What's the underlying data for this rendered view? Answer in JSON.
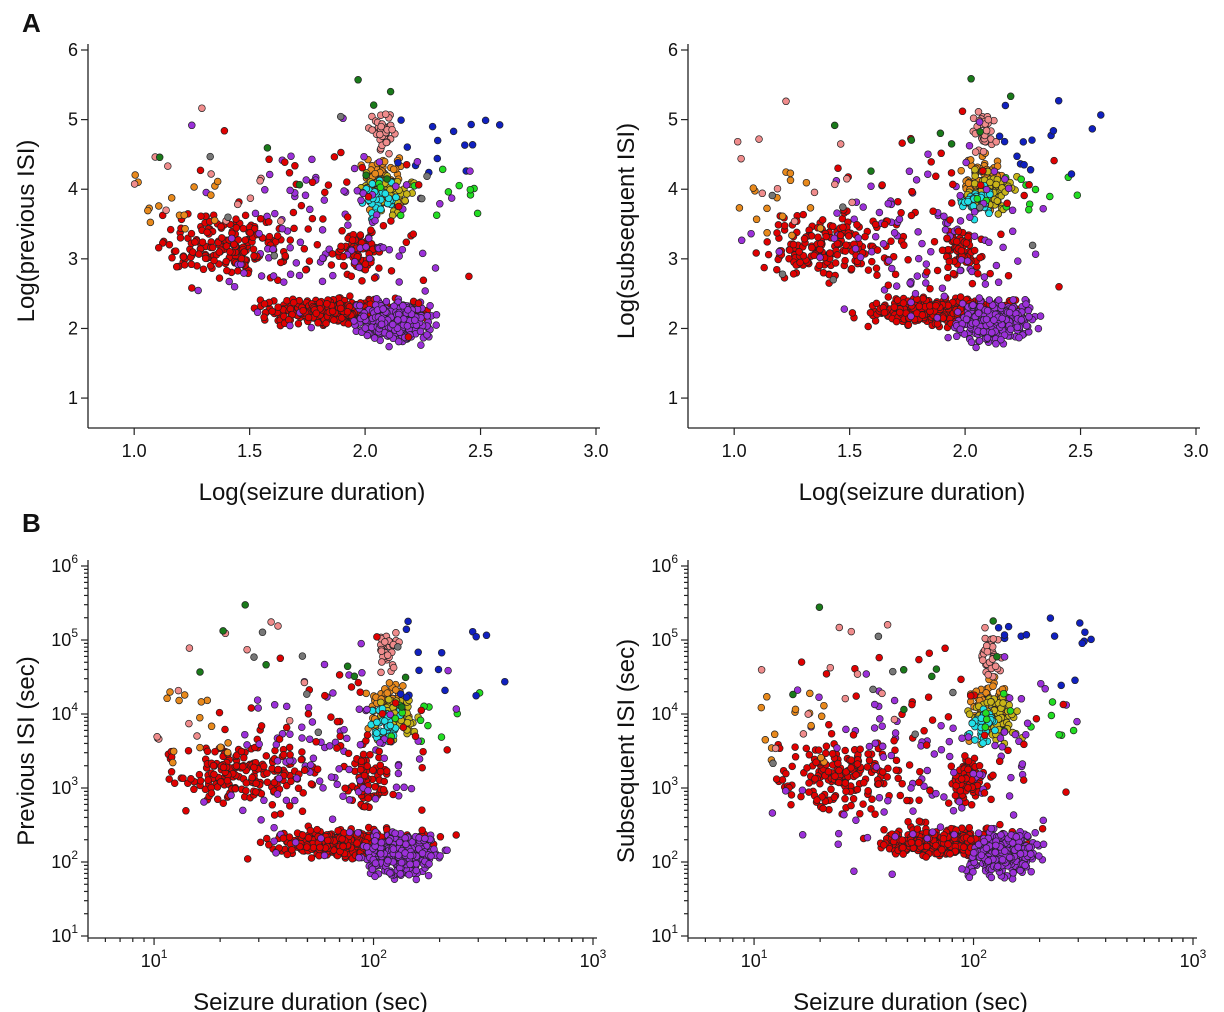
{
  "panel_labels": [
    "A",
    "B"
  ],
  "legend": [],
  "chart_data": [
    {
      "id": "A-left",
      "type": "scatter",
      "xlabel": "Log(seizure duration)",
      "ylabel": "Log(previous ISI)",
      "xlim": [
        0.8,
        3.0
      ],
      "ylim": [
        0.8,
        6.0
      ],
      "xticks": [
        "1.0",
        "1.5",
        "2.0",
        "2.5",
        "3.0"
      ],
      "yticks": [
        "1",
        "2",
        "3",
        "4",
        "5",
        "6"
      ],
      "xscale": "linear",
      "yscale": "linear",
      "grid": false,
      "series_colors": {
        "red": "#e00000",
        "purple": "#9b30d9",
        "orange": "#e8891c",
        "olive": "#c8b418",
        "cyan": "#22e0e8",
        "pink": "#f08c8c",
        "blue": "#1020c0",
        "green": "#22dd22",
        "darkgreen": "#1a7a1a",
        "gray": "#777777"
      },
      "clusters": [
        {
          "color": "red",
          "n": 420,
          "x": [
            1.45,
            2.35
          ],
          "y": [
            2.0,
            2.5
          ]
        },
        {
          "color": "purple",
          "n": 300,
          "x": [
            1.9,
            2.35
          ],
          "y": [
            1.7,
            2.5
          ]
        },
        {
          "color": "red",
          "n": 180,
          "x": [
            1.0,
            1.8
          ],
          "y": [
            2.6,
            3.8
          ]
        },
        {
          "color": "red",
          "n": 70,
          "x": [
            1.85,
            2.1
          ],
          "y": [
            2.6,
            3.6
          ]
        },
        {
          "color": "orange",
          "n": 90,
          "x": [
            1.95,
            2.2
          ],
          "y": [
            3.6,
            4.6
          ]
        },
        {
          "color": "olive",
          "n": 80,
          "x": [
            1.95,
            2.25
          ],
          "y": [
            3.5,
            4.4
          ]
        },
        {
          "color": "cyan",
          "n": 40,
          "x": [
            1.95,
            2.15
          ],
          "y": [
            3.5,
            4.2
          ]
        },
        {
          "color": "pink",
          "n": 35,
          "x": [
            2.0,
            2.15
          ],
          "y": [
            4.4,
            5.3
          ]
        },
        {
          "color": "green",
          "n": 12,
          "x": [
            2.05,
            2.5
          ],
          "y": [
            3.6,
            4.3
          ]
        },
        {
          "color": "blue",
          "n": 15,
          "x": [
            2.1,
            2.6
          ],
          "y": [
            4.2,
            5.3
          ]
        },
        {
          "color": "purple",
          "n": 100,
          "x": [
            1.0,
            2.6
          ],
          "y": [
            1.6,
            5.2
          ]
        },
        {
          "color": "red",
          "n": 60,
          "x": [
            1.0,
            2.7
          ],
          "y": [
            1.6,
            5.5
          ]
        },
        {
          "color": "orange",
          "n": 15,
          "x": [
            1.0,
            1.4
          ],
          "y": [
            3.3,
            4.3
          ]
        },
        {
          "color": "pink",
          "n": 12,
          "x": [
            1.0,
            1.7
          ],
          "y": [
            3.5,
            5.3
          ]
        },
        {
          "color": "darkgreen",
          "n": 8,
          "x": [
            1.1,
            2.3
          ],
          "y": [
            4.0,
            5.7
          ]
        },
        {
          "color": "gray",
          "n": 6,
          "x": [
            1.05,
            2.3
          ],
          "y": [
            2.6,
            5.2
          ]
        }
      ]
    },
    {
      "id": "A-right",
      "type": "scatter",
      "xlabel": "Log(seizure duration)",
      "ylabel": "Log(subsequent ISI)",
      "xlim": [
        0.8,
        3.0
      ],
      "ylim": [
        0.8,
        6.0
      ],
      "xticks": [
        "1.0",
        "1.5",
        "2.0",
        "2.5",
        "3.0"
      ],
      "yticks": [
        "1",
        "2",
        "3",
        "4",
        "5",
        "6"
      ],
      "xscale": "linear",
      "yscale": "linear",
      "grid": false,
      "clusters": [
        {
          "color": "red",
          "n": 420,
          "x": [
            1.45,
            2.35
          ],
          "y": [
            2.0,
            2.5
          ]
        },
        {
          "color": "purple",
          "n": 300,
          "x": [
            1.9,
            2.35
          ],
          "y": [
            1.7,
            2.5
          ]
        },
        {
          "color": "red",
          "n": 170,
          "x": [
            1.0,
            1.8
          ],
          "y": [
            2.5,
            3.8
          ]
        },
        {
          "color": "red",
          "n": 70,
          "x": [
            1.85,
            2.1
          ],
          "y": [
            2.6,
            3.6
          ]
        },
        {
          "color": "orange",
          "n": 90,
          "x": [
            1.95,
            2.2
          ],
          "y": [
            3.6,
            4.6
          ]
        },
        {
          "color": "olive",
          "n": 80,
          "x": [
            1.95,
            2.25
          ],
          "y": [
            3.5,
            4.4
          ]
        },
        {
          "color": "cyan",
          "n": 40,
          "x": [
            1.95,
            2.15
          ],
          "y": [
            3.5,
            4.2
          ]
        },
        {
          "color": "pink",
          "n": 35,
          "x": [
            2.0,
            2.15
          ],
          "y": [
            4.4,
            5.3
          ]
        },
        {
          "color": "green",
          "n": 12,
          "x": [
            2.05,
            2.5
          ],
          "y": [
            3.6,
            4.3
          ]
        },
        {
          "color": "blue",
          "n": 15,
          "x": [
            2.1,
            2.6
          ],
          "y": [
            4.2,
            5.3
          ]
        },
        {
          "color": "purple",
          "n": 100,
          "x": [
            1.0,
            2.6
          ],
          "y": [
            1.5,
            5.2
          ]
        },
        {
          "color": "red",
          "n": 60,
          "x": [
            1.0,
            2.7
          ],
          "y": [
            1.6,
            5.5
          ]
        },
        {
          "color": "orange",
          "n": 15,
          "x": [
            1.0,
            1.4
          ],
          "y": [
            3.3,
            4.3
          ]
        },
        {
          "color": "pink",
          "n": 12,
          "x": [
            1.0,
            1.7
          ],
          "y": [
            3.5,
            5.3
          ]
        },
        {
          "color": "darkgreen",
          "n": 8,
          "x": [
            1.1,
            2.3
          ],
          "y": [
            4.0,
            5.7
          ]
        },
        {
          "color": "gray",
          "n": 6,
          "x": [
            1.05,
            2.3
          ],
          "y": [
            2.6,
            5.2
          ]
        }
      ]
    },
    {
      "id": "B-left",
      "type": "scatter",
      "xlabel": "Seizure duration (sec)",
      "ylabel": "Previous ISI (sec)",
      "xlim": [
        5,
        1000
      ],
      "ylim": [
        10,
        1000000
      ],
      "xticks": [
        "10^1",
        "10^2",
        "10^3"
      ],
      "yticks": [
        "10^1",
        "10^2",
        "10^3",
        "10^4",
        "10^5",
        "10^6"
      ],
      "xscale": "log",
      "yscale": "log",
      "grid": false,
      "clusters": [
        {
          "color": "red",
          "n": 420,
          "x": [
            28,
            220
          ],
          "y": [
            100,
            320
          ]
        },
        {
          "color": "purple",
          "n": 300,
          "x": [
            80,
            220
          ],
          "y": [
            50,
            320
          ]
        },
        {
          "color": "red",
          "n": 180,
          "x": [
            10,
            63
          ],
          "y": [
            400,
            6300
          ]
        },
        {
          "color": "red",
          "n": 70,
          "x": [
            70,
            126
          ],
          "y": [
            400,
            4000
          ]
        },
        {
          "color": "orange",
          "n": 90,
          "x": [
            89,
            158
          ],
          "y": [
            4000,
            40000
          ]
        },
        {
          "color": "olive",
          "n": 80,
          "x": [
            89,
            178
          ],
          "y": [
            3200,
            25000
          ]
        },
        {
          "color": "cyan",
          "n": 40,
          "x": [
            89,
            141
          ],
          "y": [
            3200,
            16000
          ]
        },
        {
          "color": "pink",
          "n": 35,
          "x": [
            100,
            141
          ],
          "y": [
            25000,
            200000
          ]
        },
        {
          "color": "green",
          "n": 12,
          "x": [
            112,
            316
          ],
          "y": [
            4000,
            20000
          ]
        },
        {
          "color": "blue",
          "n": 15,
          "x": [
            126,
            400
          ],
          "y": [
            16000,
            200000
          ]
        },
        {
          "color": "purple",
          "n": 100,
          "x": [
            10,
            400
          ],
          "y": [
            40,
            158000
          ]
        },
        {
          "color": "red",
          "n": 60,
          "x": [
            10,
            500
          ],
          "y": [
            40,
            316000
          ]
        },
        {
          "color": "orange",
          "n": 15,
          "x": [
            10,
            25
          ],
          "y": [
            2000,
            20000
          ]
        },
        {
          "color": "pink",
          "n": 12,
          "x": [
            10,
            50
          ],
          "y": [
            3200,
            200000
          ]
        },
        {
          "color": "darkgreen",
          "n": 8,
          "x": [
            12,
            200
          ],
          "y": [
            10000,
            500000
          ]
        },
        {
          "color": "gray",
          "n": 6,
          "x": [
            11,
            200
          ],
          "y": [
            400,
            158000
          ]
        }
      ]
    },
    {
      "id": "B-right",
      "type": "scatter",
      "xlabel": "Seizure duration (sec)",
      "ylabel": "Subsequent ISI (sec)",
      "xlim": [
        5,
        1000
      ],
      "ylim": [
        10,
        1000000
      ],
      "xticks": [
        "10^1",
        "10^2",
        "10^3"
      ],
      "yticks": [
        "10^1",
        "10^2",
        "10^3",
        "10^4",
        "10^5",
        "10^6"
      ],
      "xscale": "log",
      "yscale": "log",
      "grid": false,
      "clusters": [
        {
          "color": "red",
          "n": 420,
          "x": [
            28,
            220
          ],
          "y": [
            100,
            320
          ]
        },
        {
          "color": "purple",
          "n": 300,
          "x": [
            80,
            220
          ],
          "y": [
            50,
            320
          ]
        },
        {
          "color": "red",
          "n": 170,
          "x": [
            10,
            63
          ],
          "y": [
            320,
            6300
          ]
        },
        {
          "color": "red",
          "n": 70,
          "x": [
            70,
            126
          ],
          "y": [
            400,
            4000
          ]
        },
        {
          "color": "orange",
          "n": 90,
          "x": [
            89,
            158
          ],
          "y": [
            4000,
            40000
          ]
        },
        {
          "color": "olive",
          "n": 80,
          "x": [
            89,
            178
          ],
          "y": [
            3200,
            25000
          ]
        },
        {
          "color": "cyan",
          "n": 40,
          "x": [
            89,
            141
          ],
          "y": [
            3200,
            16000
          ]
        },
        {
          "color": "pink",
          "n": 35,
          "x": [
            100,
            141
          ],
          "y": [
            25000,
            200000
          ]
        },
        {
          "color": "green",
          "n": 12,
          "x": [
            112,
            316
          ],
          "y": [
            4000,
            20000
          ]
        },
        {
          "color": "blue",
          "n": 15,
          "x": [
            126,
            400
          ],
          "y": [
            16000,
            200000
          ]
        },
        {
          "color": "purple",
          "n": 100,
          "x": [
            10,
            400
          ],
          "y": [
            32,
            158000
          ]
        },
        {
          "color": "red",
          "n": 60,
          "x": [
            10,
            500
          ],
          "y": [
            40,
            316000
          ]
        },
        {
          "color": "orange",
          "n": 15,
          "x": [
            10,
            25
          ],
          "y": [
            2000,
            20000
          ]
        },
        {
          "color": "pink",
          "n": 12,
          "x": [
            10,
            50
          ],
          "y": [
            3200,
            200000
          ]
        },
        {
          "color": "darkgreen",
          "n": 8,
          "x": [
            12,
            200
          ],
          "y": [
            10000,
            500000
          ]
        },
        {
          "color": "gray",
          "n": 6,
          "x": [
            11,
            200
          ],
          "y": [
            400,
            158000
          ]
        }
      ]
    }
  ]
}
